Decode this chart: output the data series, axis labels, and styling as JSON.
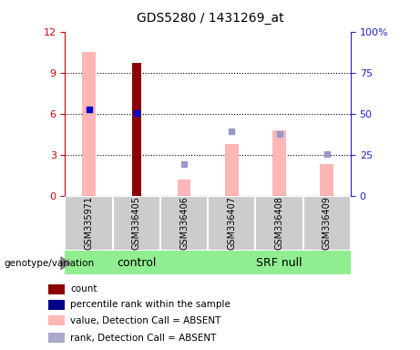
{
  "title": "GDS5280 / 1431269_at",
  "samples": [
    "GSM335971",
    "GSM336405",
    "GSM336406",
    "GSM336407",
    "GSM336408",
    "GSM336409"
  ],
  "left_ylim": [
    0,
    12
  ],
  "right_ylim": [
    0,
    100
  ],
  "left_yticks": [
    0,
    3,
    6,
    9,
    12
  ],
  "right_yticks": [
    0,
    25,
    50,
    75,
    100
  ],
  "right_yticklabels": [
    "0",
    "25",
    "50",
    "75",
    "100%"
  ],
  "pink_bars": [
    10.5,
    0,
    1.2,
    3.8,
    4.8,
    2.3
  ],
  "dark_red_bars": [
    0,
    9.7,
    0,
    0,
    0,
    0
  ],
  "blue_squares_value": [
    6.3,
    6.05,
    null,
    null,
    null,
    null
  ],
  "light_blue_squares_value": [
    null,
    null,
    2.3,
    4.7,
    4.55,
    3.05
  ],
  "left_axis_color": "#cc0000",
  "right_axis_color": "#2222cc",
  "pink_color": "#ffb6b6",
  "dark_red_color": "#8b0000",
  "blue_color": "#0000cc",
  "light_blue_color": "#9999cc",
  "legend_labels": [
    "count",
    "percentile rank within the sample",
    "value, Detection Call = ABSENT",
    "rank, Detection Call = ABSENT"
  ],
  "legend_colors": [
    "#8b0000",
    "#00008b",
    "#ffb6b6",
    "#aaaacc"
  ],
  "control_color": "#90ee90",
  "srf_color": "#90ee90",
  "gray_box_color": "#cccccc",
  "genotype_label": "genotype/variation"
}
